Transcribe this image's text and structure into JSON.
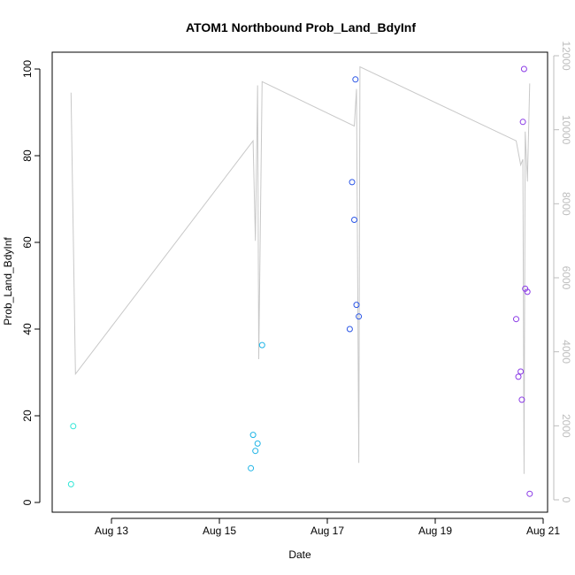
{
  "chart_data": {
    "type": "scatter",
    "title": "ATOM1 Northbound Prob_Land_BdyInf",
    "xlabel": "Date",
    "ylabel": "Prob_Land_BdyInf",
    "x_ticks": [
      "Aug 13",
      "Aug 15",
      "Aug 17",
      "Aug 19",
      "Aug 21"
    ],
    "y_ticks": [
      "0",
      "20",
      "40",
      "60",
      "80",
      "100"
    ],
    "y2_ticks": [
      "0",
      "2000",
      "4000",
      "6000",
      "8000",
      "10000",
      "12000"
    ],
    "ylim": [
      0,
      100
    ],
    "y2lim": [
      0,
      12000
    ],
    "grid": false,
    "legend": "none",
    "colors": {
      "axis": "#000000",
      "secondary_axis": "#bdbdbd",
      "line": "#c8c8c8"
    },
    "series": [
      {
        "color": "#2ee6d6",
        "points": [
          {
            "x": "Aug 12 06:00",
            "y": 4.2
          },
          {
            "x": "Aug 12 07:00",
            "y": 17.6
          }
        ]
      },
      {
        "color": "#1eb4e6",
        "points": [
          {
            "x": "Aug 15 14:00",
            "y": 7.9
          },
          {
            "x": "Aug 15 15:00",
            "y": 15.6
          },
          {
            "x": "Aug 15 16:00",
            "y": 11.9
          },
          {
            "x": "Aug 15 17:00",
            "y": 13.6
          },
          {
            "x": "Aug 15 19:00",
            "y": 36.3
          }
        ]
      },
      {
        "color": "#2a55e6",
        "points": [
          {
            "x": "Aug 17 10:00",
            "y": 40.0
          },
          {
            "x": "Aug 17 11:00",
            "y": 73.9
          },
          {
            "x": "Aug 17 12:00",
            "y": 65.2
          },
          {
            "x": "Aug 17 12:30",
            "y": 97.6
          },
          {
            "x": "Aug 17 13:00",
            "y": 45.6
          },
          {
            "x": "Aug 17 14:00",
            "y": 42.9
          }
        ]
      },
      {
        "color": "#8a3ae6",
        "points": [
          {
            "x": "Aug 20 12:00",
            "y": 42.3
          },
          {
            "x": "Aug 20 13:00",
            "y": 29.0
          },
          {
            "x": "Aug 20 14:00",
            "y": 30.2
          },
          {
            "x": "Aug 20 14:30",
            "y": 23.7
          },
          {
            "x": "Aug 20 15:00",
            "y": 87.8
          },
          {
            "x": "Aug 20 15:30",
            "y": 100.0
          },
          {
            "x": "Aug 20 16:00",
            "y": 49.3
          },
          {
            "x": "Aug 20 17:00",
            "y": 48.6
          },
          {
            "x": "Aug 20 18:00",
            "y": 2.0
          }
        ]
      }
    ],
    "line_series": {
      "axis": "secondary",
      "points": [
        {
          "x": "Aug 12 06:00",
          "y2": 11000
        },
        {
          "x": "Aug 12 08:00",
          "y2": 3400
        },
        {
          "x": "Aug 15 15:00",
          "y2": 9700
        },
        {
          "x": "Aug 15 16:00",
          "y2": 7000
        },
        {
          "x": "Aug 15 17:00",
          "y2": 11200
        },
        {
          "x": "Aug 15 17:30",
          "y2": 3800
        },
        {
          "x": "Aug 15 19:00",
          "y2": 11300
        },
        {
          "x": "Aug 17 12:00",
          "y2": 10100
        },
        {
          "x": "Aug 17 13:00",
          "y2": 11100
        },
        {
          "x": "Aug 17 14:00",
          "y2": 1000
        },
        {
          "x": "Aug 17 14:30",
          "y2": 11700
        },
        {
          "x": "Aug 20 12:00",
          "y2": 9700
        },
        {
          "x": "Aug 20 14:00",
          "y2": 9050
        },
        {
          "x": "Aug 20 15:00",
          "y2": 9200
        },
        {
          "x": "Aug 20 15:30",
          "y2": 700
        },
        {
          "x": "Aug 20 16:00",
          "y2": 9950
        },
        {
          "x": "Aug 20 17:00",
          "y2": 8600
        },
        {
          "x": "Aug 20 18:00",
          "y2": 11250
        }
      ]
    }
  }
}
